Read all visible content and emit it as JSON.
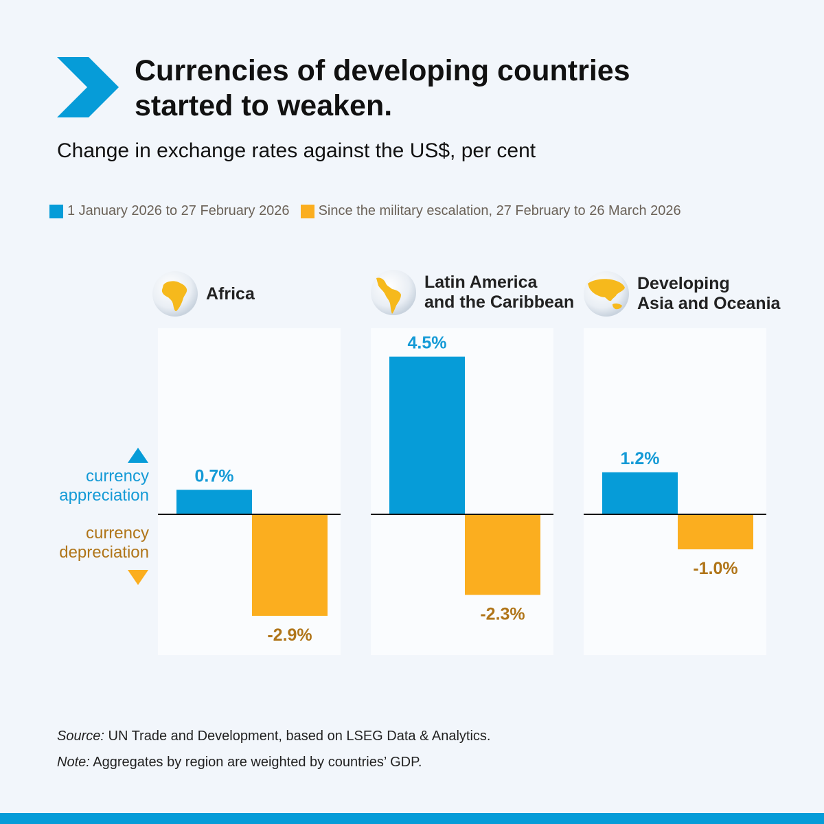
{
  "header": {
    "title_line1": "Currencies of developing countries",
    "title_line2": "started to weaken.",
    "subtitle": "Change in exchange rates against the US$, per cent"
  },
  "legend": [
    {
      "label": "1 January 2026 to 27 February 2026",
      "color": "#069cd8"
    },
    {
      "label": "Since the military escalation, 27 February to 26 March 2026",
      "color": "#fbae1f"
    }
  ],
  "axis_labels": {
    "appreciation_1": "currency",
    "appreciation_2": "appreciation",
    "depreciation_1": "currency",
    "depreciation_2": "depreciation"
  },
  "chart_data": {
    "type": "bar",
    "unit": "%",
    "series_colors": [
      "#069cd8",
      "#fbae1f"
    ],
    "label_colors": [
      "#149ad6",
      "#b07519"
    ],
    "panels": [
      {
        "region_line1": "Africa",
        "region_line2": "",
        "icon": "africa-globe-icon",
        "values": [
          0.7,
          -2.9
        ],
        "labels": [
          "0.7%",
          "-2.9%"
        ]
      },
      {
        "region_line1": "Latin America",
        "region_line2": "and the Caribbean",
        "icon": "latin-america-globe-icon",
        "values": [
          4.5,
          -2.3
        ],
        "labels": [
          "4.5%",
          "-2.3%"
        ]
      },
      {
        "region_line1": "Developing",
        "region_line2": "Asia and Oceania",
        "icon": "asia-oceania-globe-icon",
        "values": [
          1.2,
          -1.0
        ],
        "labels": [
          "1.2%",
          "-1.0%"
        ]
      }
    ]
  },
  "footer": {
    "source_label": "Source:",
    "source_text": " UN Trade and Development, based on LSEG Data & Analytics.",
    "note_label": "Note:",
    "note_text": " Aggregates by region are weighted by countries’ GDP."
  }
}
